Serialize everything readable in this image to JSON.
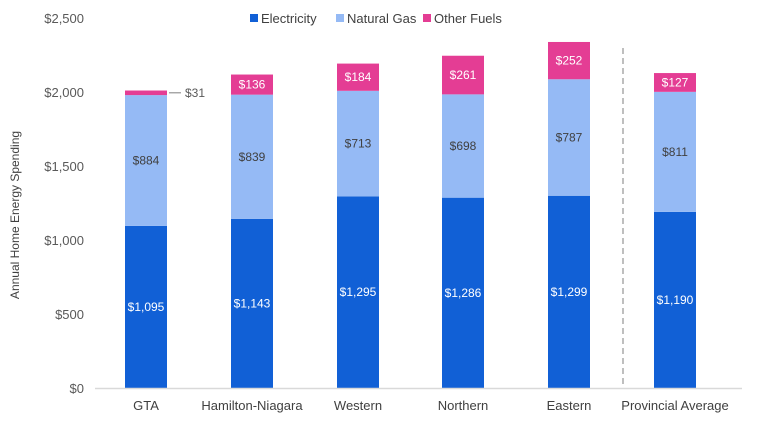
{
  "chart_data": {
    "type": "bar",
    "stacked": true,
    "title": "",
    "xlabel": "",
    "ylabel": "Annual Home Energy Spending",
    "ylim": [
      0,
      2500
    ],
    "yticks": [
      0,
      500,
      1000,
      1500,
      2000,
      2500
    ],
    "ytick_labels": [
      "$0",
      "$500",
      "$1,000",
      "$1,500",
      "$2,000",
      "$2,500"
    ],
    "grid": false,
    "legend_position": "top",
    "categories": [
      "GTA",
      "Hamilton-Niagara",
      "Western",
      "Northern",
      "Eastern",
      "Provincial Average"
    ],
    "series": [
      {
        "name": "Electricity",
        "color": "#1160D6",
        "label_color": "#ffffff",
        "values": [
          1095,
          1143,
          1295,
          1286,
          1299,
          1190
        ],
        "labels": [
          "$1,095",
          "$1,143",
          "$1,295",
          "$1,286",
          "$1,299",
          "$1,190"
        ]
      },
      {
        "name": "Natural Gas",
        "color": "#95BAF5",
        "label_color": "#404040",
        "values": [
          884,
          839,
          713,
          698,
          787,
          811
        ],
        "labels": [
          "$884",
          "$839",
          "$713",
          "$698",
          "$787",
          "$811"
        ]
      },
      {
        "name": "Other Fuels",
        "color": "#E43D94",
        "label_color": "#ffffff",
        "values": [
          31,
          136,
          184,
          261,
          252,
          127
        ],
        "labels": [
          "$31",
          "$136",
          "$184",
          "$261",
          "$252",
          "$127"
        ]
      }
    ],
    "annotations": [
      "dashed separator before Provincial Average"
    ]
  }
}
